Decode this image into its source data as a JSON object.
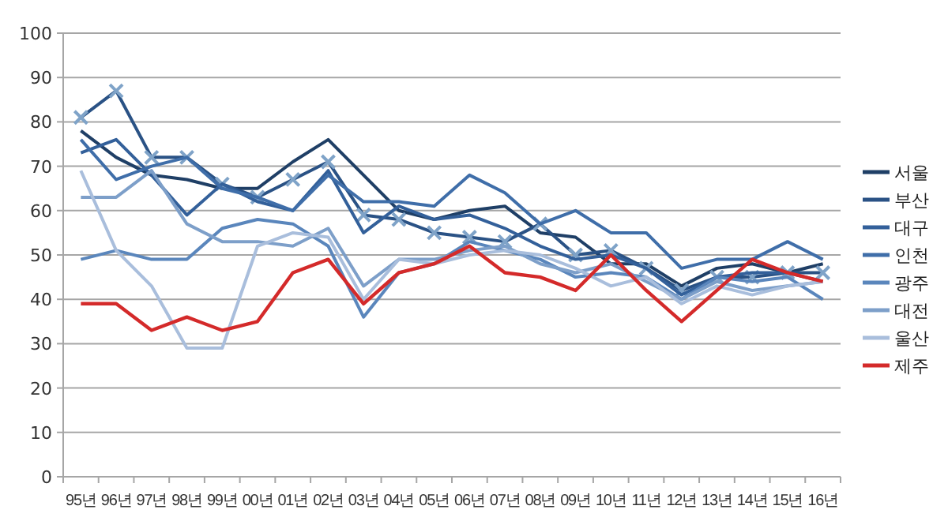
{
  "chart_data": {
    "type": "line",
    "categories": [
      "95년",
      "96년",
      "97년",
      "98년",
      "99년",
      "00년",
      "01년",
      "02년",
      "03년",
      "04년",
      "05년",
      "06년",
      "07년",
      "08년",
      "09년",
      "10년",
      "11년",
      "12년",
      "13년",
      "14년",
      "15년",
      "16년"
    ],
    "ylim": [
      0,
      100
    ],
    "yticks": [
      0,
      10,
      20,
      30,
      40,
      50,
      60,
      70,
      80,
      90,
      100
    ],
    "grid": "y",
    "legend": "right",
    "series": [
      {
        "name": "서울",
        "color": "#1f3f66",
        "values": [
          78,
          72,
          68,
          67,
          65,
          65,
          71,
          76,
          68,
          60,
          58,
          60,
          61,
          55,
          54,
          48,
          48,
          43,
          47,
          48,
          46,
          48
        ]
      },
      {
        "name": "부산",
        "color": "#2a5285",
        "marker": "cross",
        "values": [
          81,
          87,
          72,
          72,
          66,
          63,
          67,
          71,
          59,
          58,
          55,
          54,
          53,
          57,
          50,
          51,
          47,
          42,
          45,
          45,
          46,
          46
        ]
      },
      {
        "name": "대구",
        "color": "#33609a",
        "values": [
          73,
          76,
          68,
          59,
          66,
          62,
          60,
          69,
          55,
          61,
          58,
          59,
          56,
          52,
          49,
          50,
          47,
          41,
          45,
          46,
          46,
          44
        ]
      },
      {
        "name": "인천",
        "color": "#3f6ea9",
        "values": [
          76,
          67,
          70,
          72,
          65,
          63,
          60,
          68,
          62,
          62,
          61,
          68,
          64,
          57,
          60,
          55,
          55,
          47,
          49,
          49,
          53,
          49
        ]
      },
      {
        "name": "광주",
        "color": "#5a86bc",
        "values": [
          49,
          51,
          49,
          49,
          56,
          58,
          57,
          52,
          36,
          46,
          48,
          53,
          51,
          49,
          45,
          46,
          45,
          40,
          45,
          44,
          45,
          40
        ]
      },
      {
        "name": "대전",
        "color": "#7d9fc9",
        "values": [
          63,
          63,
          69,
          57,
          53,
          53,
          52,
          56,
          43,
          49,
          49,
          51,
          52,
          48,
          46,
          48,
          44,
          40,
          44,
          42,
          43,
          44
        ]
      },
      {
        "name": "울산",
        "color": "#a9bedc",
        "values": [
          69,
          51,
          43,
          29,
          29,
          52,
          55,
          54,
          40,
          49,
          48,
          50,
          51,
          50,
          47,
          43,
          45,
          39,
          43,
          41,
          43,
          44
        ]
      },
      {
        "name": "제주",
        "color": "#d42a2a",
        "values": [
          39,
          39,
          33,
          36,
          33,
          35,
          46,
          49,
          39,
          46,
          48,
          52,
          46,
          45,
          42,
          50,
          42,
          35,
          42,
          49,
          46,
          44
        ]
      }
    ]
  }
}
